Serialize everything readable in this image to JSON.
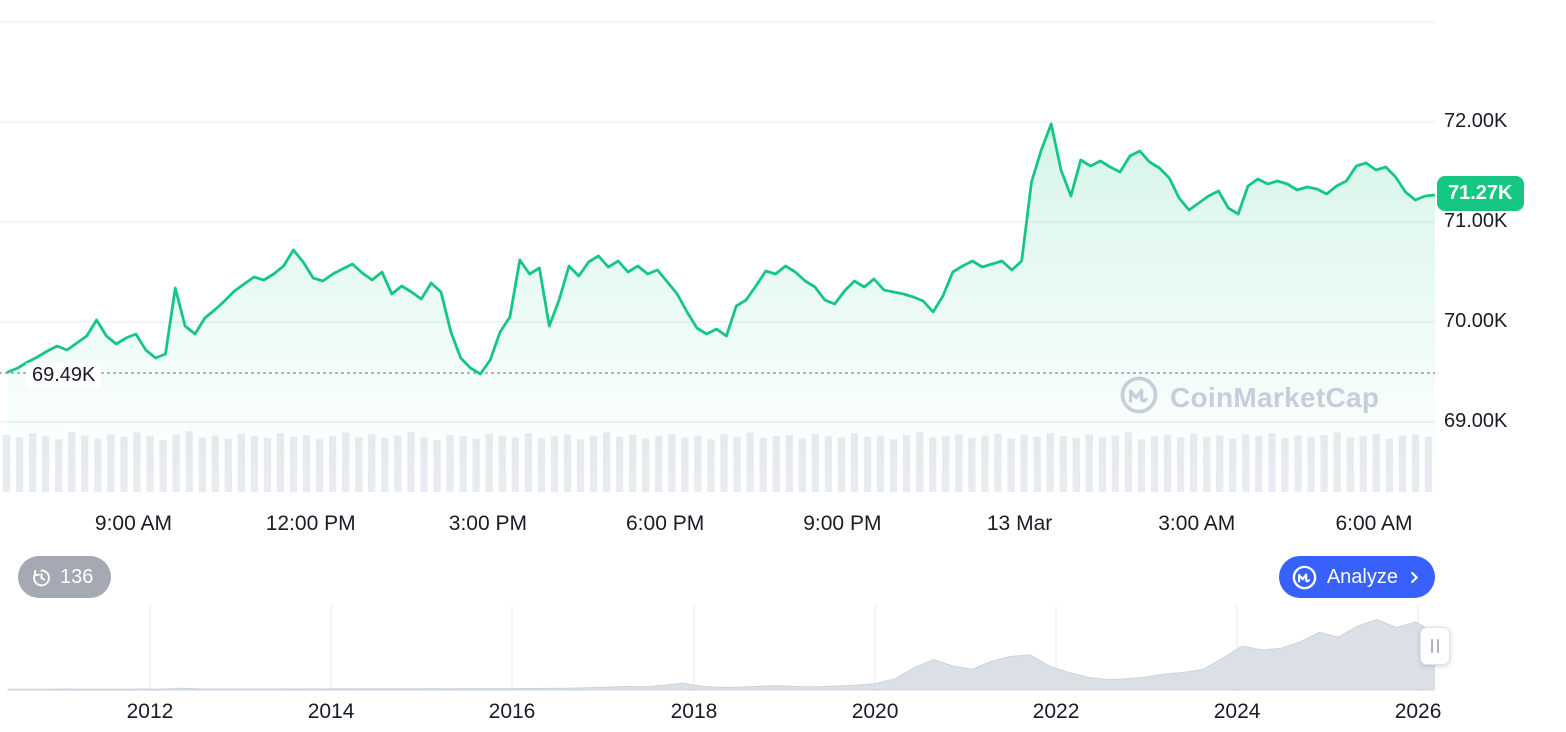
{
  "watermark": {
    "text": "CoinMarketCap"
  },
  "controls": {
    "history_count": "136",
    "analyze_label": "Analyze"
  },
  "colors": {
    "accent_green": "#16c784",
    "accent_blue": "#3861fb",
    "minimap_fill": "#dbe0e7",
    "volume_fill": "#e8ebef"
  },
  "chart_data": [
    {
      "type": "area",
      "name": "price-chart-24h",
      "line_color": "#16c784",
      "ylim": [
        68.6,
        73.1
      ],
      "grid_on": true,
      "legend": "none",
      "yticks": [
        {
          "label": "72.00K",
          "value": 72.0
        },
        {
          "label": "71.00K",
          "value": 71.0
        },
        {
          "label": "70.00K",
          "value": 70.0
        },
        {
          "label": "69.00K",
          "value": 69.0
        }
      ],
      "grid_values": [
        73.0,
        72.0,
        71.0,
        70.0,
        69.0
      ],
      "xticks": [
        {
          "label": "9:00 AM",
          "pos": 0.093
        },
        {
          "label": "12:00 PM",
          "pos": 0.2165
        },
        {
          "label": "3:00 PM",
          "pos": 0.34
        },
        {
          "label": "6:00 PM",
          "pos": 0.4635
        },
        {
          "label": "9:00 PM",
          "pos": 0.587
        },
        {
          "label": "13 Mar",
          "pos": 0.7105
        },
        {
          "label": "3:00 AM",
          "pos": 0.834
        },
        {
          "label": "6:00 AM",
          "pos": 0.9575
        }
      ],
      "baseline": {
        "label": "69.49K",
        "value": 69.49
      },
      "last_price": {
        "label": "71.27K",
        "value": 71.27
      },
      "values": [
        69.5,
        69.54,
        69.6,
        69.65,
        69.71,
        69.76,
        69.72,
        69.79,
        69.86,
        70.02,
        69.86,
        69.78,
        69.84,
        69.88,
        69.72,
        69.64,
        69.68,
        70.34,
        69.96,
        69.88,
        70.04,
        70.12,
        70.21,
        70.31,
        70.38,
        70.45,
        70.42,
        70.48,
        70.56,
        70.72,
        70.6,
        70.44,
        70.41,
        70.48,
        70.53,
        70.58,
        70.49,
        70.42,
        70.5,
        70.28,
        70.36,
        70.3,
        70.23,
        70.39,
        70.3,
        69.9,
        69.64,
        69.54,
        69.48,
        69.62,
        69.9,
        70.05,
        70.62,
        70.48,
        70.54,
        69.96,
        70.22,
        70.56,
        70.46,
        70.6,
        70.66,
        70.55,
        70.61,
        70.5,
        70.56,
        70.48,
        70.52,
        70.4,
        70.28,
        70.1,
        69.94,
        69.88,
        69.93,
        69.86,
        70.16,
        70.22,
        70.36,
        70.51,
        70.48,
        70.56,
        70.5,
        70.41,
        70.35,
        70.22,
        70.18,
        70.31,
        70.41,
        70.35,
        70.43,
        70.32,
        70.3,
        70.28,
        70.25,
        70.21,
        70.1,
        70.26,
        70.5,
        70.56,
        70.61,
        70.55,
        70.58,
        70.61,
        70.52,
        70.61,
        71.4,
        71.72,
        71.98,
        71.52,
        71.26,
        71.62,
        71.56,
        71.61,
        71.55,
        71.5,
        71.66,
        71.71,
        71.6,
        71.54,
        71.44,
        71.24,
        71.12,
        71.19,
        71.26,
        71.31,
        71.14,
        71.08,
        71.36,
        71.43,
        71.38,
        71.41,
        71.38,
        71.32,
        71.35,
        71.33,
        71.28,
        71.36,
        71.41,
        71.56,
        71.59,
        71.52,
        71.55,
        71.45,
        71.3,
        71.22,
        71.26,
        71.27
      ],
      "volume_profile": [
        0.92,
        0.88,
        0.95,
        0.9,
        0.85,
        0.97,
        0.91,
        0.86,
        0.93,
        0.89,
        0.96,
        0.9,
        0.84,
        0.92,
        0.98,
        0.88,
        0.91,
        0.86,
        0.94,
        0.9,
        0.87,
        0.95,
        0.89,
        0.92,
        0.85,
        0.9,
        0.96,
        0.88,
        0.93,
        0.87,
        0.91,
        0.97,
        0.89,
        0.84,
        0.92,
        0.9,
        0.86,
        0.94,
        0.91,
        0.88,
        0.95,
        0.87,
        0.9,
        0.93,
        0.85,
        0.91,
        0.96,
        0.89,
        0.92,
        0.86,
        0.9,
        0.94,
        0.88,
        0.91,
        0.85,
        0.93,
        0.89,
        0.96,
        0.87,
        0.9,
        0.92,
        0.86,
        0.94,
        0.9,
        0.88,
        0.95,
        0.89,
        0.91,
        0.85,
        0.92,
        0.96,
        0.88,
        0.9,
        0.93,
        0.87,
        0.91,
        0.94,
        0.86,
        0.92,
        0.89,
        0.95,
        0.9,
        0.87,
        0.93,
        0.88,
        0.91,
        0.96,
        0.85,
        0.9,
        0.92,
        0.88,
        0.94,
        0.89,
        0.91,
        0.86,
        0.93,
        0.9,
        0.95,
        0.87,
        0.91,
        0.89,
        0.92,
        0.96,
        0.88,
        0.9,
        0.94,
        0.86,
        0.91,
        0.93,
        0.89
      ]
    },
    {
      "type": "area",
      "name": "history-minimap",
      "xticks": [
        {
          "label": "2012",
          "pos": 0.1045
        },
        {
          "label": "2014",
          "pos": 0.2307
        },
        {
          "label": "2016",
          "pos": 0.3568
        },
        {
          "label": "2018",
          "pos": 0.4836
        },
        {
          "label": "2020",
          "pos": 0.6098
        },
        {
          "label": "2022",
          "pos": 0.7359
        },
        {
          "label": "2024",
          "pos": 0.8621
        },
        {
          "label": "2026",
          "pos": 0.9882
        }
      ],
      "values": [
        0.01,
        0.01,
        0.01,
        0.012,
        0.01,
        0.011,
        0.01,
        0.012,
        0.011,
        0.022,
        0.014,
        0.012,
        0.012,
        0.013,
        0.012,
        0.014,
        0.013,
        0.015,
        0.014,
        0.015,
        0.016,
        0.015,
        0.017,
        0.016,
        0.018,
        0.017,
        0.018,
        0.019,
        0.02,
        0.022,
        0.028,
        0.035,
        0.045,
        0.04,
        0.06,
        0.085,
        0.045,
        0.032,
        0.036,
        0.048,
        0.052,
        0.042,
        0.04,
        0.05,
        0.06,
        0.08,
        0.14,
        0.28,
        0.38,
        0.3,
        0.26,
        0.36,
        0.42,
        0.44,
        0.3,
        0.22,
        0.16,
        0.13,
        0.14,
        0.16,
        0.2,
        0.22,
        0.26,
        0.4,
        0.55,
        0.5,
        0.52,
        0.6,
        0.72,
        0.66,
        0.8,
        0.88,
        0.78,
        0.85,
        0.72
      ]
    }
  ]
}
